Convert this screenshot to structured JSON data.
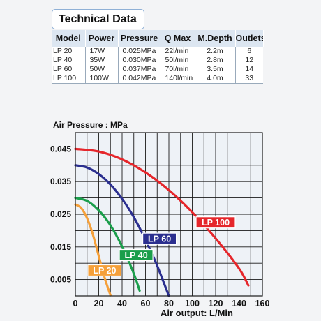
{
  "header": {
    "title": "Technical Data"
  },
  "table": {
    "columns": [
      "Model",
      "Power",
      "Pressure",
      "Q Max",
      "M.Depth",
      "Outlets"
    ],
    "rows": [
      [
        "LP 20",
        "17W",
        "0.025MPa",
        "22l/min",
        "2.2m",
        "6"
      ],
      [
        "LP 40",
        "35W",
        "0.030MPa",
        "50l/min",
        "2.8m",
        "12"
      ],
      [
        "LP 60",
        "50W",
        "0.037MPa",
        "70l/min",
        "3.5m",
        "14"
      ],
      [
        "LP 100",
        "100W",
        "0.042MPa",
        "140l/min",
        "4.0m",
        "33"
      ]
    ]
  },
  "chart_data": {
    "type": "line",
    "title": "",
    "xlabel": "Air output: L/Min",
    "ylabel": "Air Pressure : MPa",
    "xlim": [
      0,
      160
    ],
    "ylim": [
      0,
      0.05
    ],
    "xticks": [
      0,
      20,
      40,
      60,
      80,
      100,
      120,
      140,
      160
    ],
    "yticks": [
      0.045,
      0.035,
      0.025,
      0.015,
      0.005
    ],
    "grid": true,
    "series": [
      {
        "name": "LP 100",
        "color": "#e5262b",
        "x": [
          0,
          20,
          40,
          60,
          80,
          100,
          120,
          140,
          148
        ],
        "y": [
          0.045,
          0.0442,
          0.0418,
          0.0378,
          0.0324,
          0.0256,
          0.0176,
          0.0084,
          0.0032
        ]
      },
      {
        "name": "LP 60",
        "color": "#2b2f8f",
        "x": [
          0,
          10,
          20,
          30,
          40,
          50,
          60,
          70,
          80
        ],
        "y": [
          0.04,
          0.0393,
          0.0373,
          0.0341,
          0.0297,
          0.0241,
          0.0172,
          0.0092,
          0.0
        ]
      },
      {
        "name": "LP 40",
        "color": "#1a9e4b",
        "x": [
          0,
          10,
          20,
          30,
          40,
          50,
          55
        ],
        "y": [
          0.03,
          0.0291,
          0.0262,
          0.0216,
          0.0151,
          0.0068,
          0.0016
        ]
      },
      {
        "name": "LP 20",
        "color": "#f5a03a",
        "x": [
          0,
          5,
          10,
          15,
          20,
          25,
          30
        ],
        "y": [
          0.028,
          0.0269,
          0.0238,
          0.0188,
          0.0122,
          0.0056,
          0.0002
        ]
      }
    ],
    "labels": [
      {
        "text": "LP 100",
        "x": 120,
        "y": 0.0225,
        "color": "#e5262b"
      },
      {
        "text": "LP 60",
        "x": 72,
        "y": 0.0175,
        "color": "#2b2f8f"
      },
      {
        "text": "LP 40",
        "x": 52,
        "y": 0.0125,
        "color": "#1a9e4b"
      },
      {
        "text": "LP 20",
        "x": 25,
        "y": 0.0078,
        "color": "#f5a03a"
      }
    ]
  }
}
